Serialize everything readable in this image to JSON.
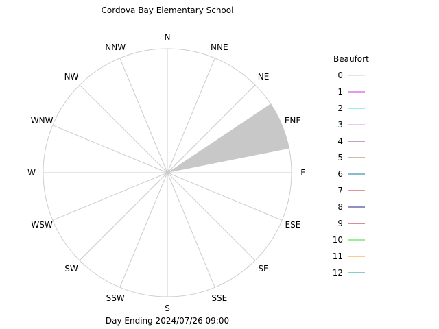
{
  "chart_data": {
    "type": "wind-rose",
    "title": "Cordova Bay Elementary School",
    "footer": "Day Ending 2024/07/26 09:00",
    "directions": [
      "N",
      "NNE",
      "NE",
      "ENE",
      "E",
      "ESE",
      "SE",
      "SSE",
      "S",
      "SSW",
      "SW",
      "WSW",
      "W",
      "WNW",
      "NW",
      "NNW"
    ],
    "frequencies": [
      0,
      0,
      0,
      1.0,
      0,
      0,
      0,
      0,
      0,
      0,
      0,
      0,
      0,
      0,
      0,
      0
    ],
    "wedge_color": "#c8c8c8",
    "grid": true,
    "legend": {
      "title": "Beaufort",
      "placement": "right",
      "entries": [
        {
          "label": "0",
          "color": "#c8c8c8"
        },
        {
          "label": "1",
          "color": "#cc33cc"
        },
        {
          "label": "2",
          "color": "#33dddd"
        },
        {
          "label": "3",
          "color": "#ee88cc"
        },
        {
          "label": "4",
          "color": "#9933aa"
        },
        {
          "label": "5",
          "color": "#aa7733"
        },
        {
          "label": "6",
          "color": "#117799"
        },
        {
          "label": "7",
          "color": "#bb3333"
        },
        {
          "label": "8",
          "color": "#222288"
        },
        {
          "label": "9",
          "color": "#aa2233"
        },
        {
          "label": "10",
          "color": "#33dd33"
        },
        {
          "label": "11",
          "color": "#ee9922"
        },
        {
          "label": "12",
          "color": "#119999"
        }
      ]
    }
  }
}
